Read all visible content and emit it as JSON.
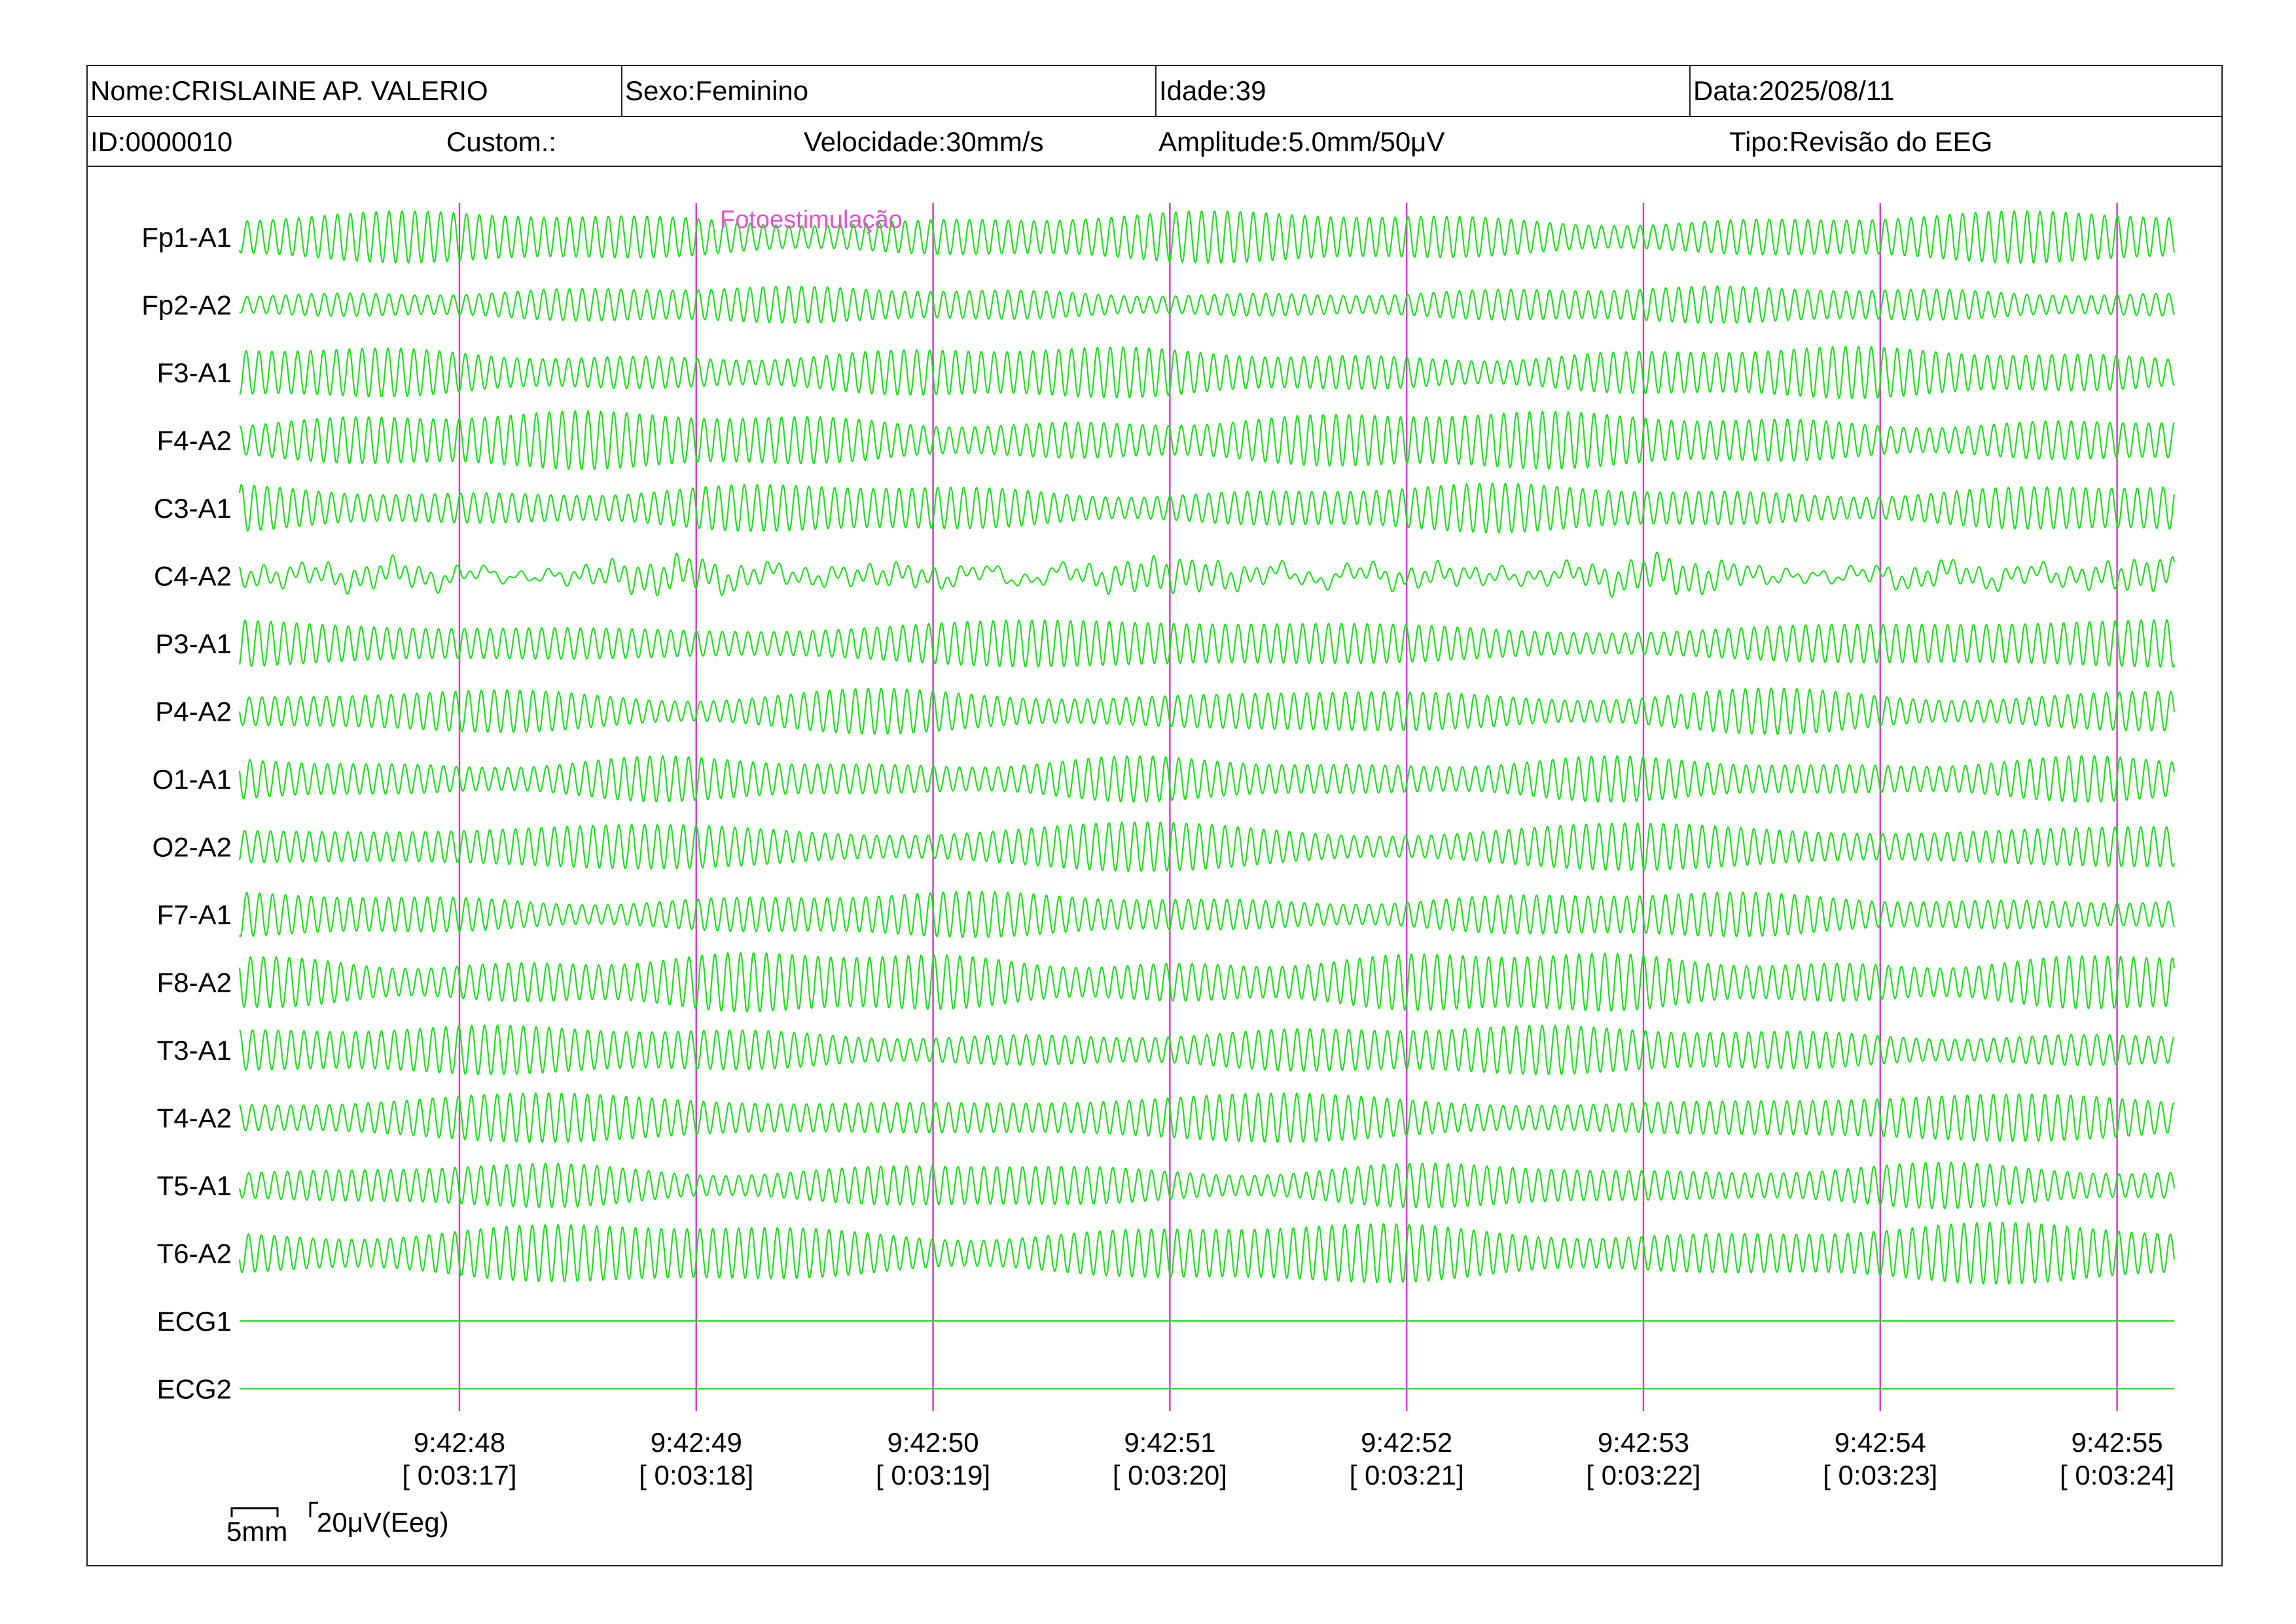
{
  "header": {
    "name": "Nome:CRISLAINE AP. VALERIO",
    "sex": "Sexo:Feminino",
    "age": "Idade:39",
    "date": "Data:2025/08/11",
    "id": "ID:0000010",
    "custom": "Custom.:",
    "speed": "Velocidade:30mm/s",
    "amplitude": "Amplitude:5.0mm/50μV",
    "type": "Tipo:Revisão do EEG"
  },
  "channels": [
    {
      "label": "Fp1-A1",
      "amplitude": 0.85,
      "cycles": 150,
      "pattern": "modulated"
    },
    {
      "label": "Fp2-A2",
      "amplitude": 0.6,
      "cycles": 150,
      "pattern": "modulated"
    },
    {
      "label": "F3-A1",
      "amplitude": 0.85,
      "cycles": 150,
      "pattern": "modulated"
    },
    {
      "label": "F4-A2",
      "amplitude": 0.95,
      "cycles": 150,
      "pattern": "modulated"
    },
    {
      "label": "C3-A1",
      "amplitude": 0.8,
      "cycles": 150,
      "pattern": "modulated"
    },
    {
      "label": "C4-A2",
      "amplitude": 0.6,
      "cycles": 150,
      "pattern": "irregular"
    },
    {
      "label": "P3-A1",
      "amplitude": 0.8,
      "cycles": 150,
      "pattern": "modulated"
    },
    {
      "label": "P4-A2",
      "amplitude": 0.75,
      "cycles": 150,
      "pattern": "modulated"
    },
    {
      "label": "O1-A1",
      "amplitude": 0.75,
      "cycles": 150,
      "pattern": "modulated"
    },
    {
      "label": "O2-A2",
      "amplitude": 0.8,
      "cycles": 150,
      "pattern": "modulated"
    },
    {
      "label": "F7-A1",
      "amplitude": 0.75,
      "cycles": 150,
      "pattern": "modulated"
    },
    {
      "label": "F8-A2",
      "amplitude": 1.0,
      "cycles": 150,
      "pattern": "modulated"
    },
    {
      "label": "T3-A1",
      "amplitude": 0.8,
      "cycles": 150,
      "pattern": "modulated"
    },
    {
      "label": "T4-A2",
      "amplitude": 0.8,
      "cycles": 150,
      "pattern": "modulated"
    },
    {
      "label": "T5-A1",
      "amplitude": 0.75,
      "cycles": 150,
      "pattern": "modulated"
    },
    {
      "label": "T6-A2",
      "amplitude": 1.0,
      "cycles": 150,
      "pattern": "modulated"
    },
    {
      "label": "ECG1",
      "amplitude": 0,
      "cycles": 0,
      "pattern": "flat"
    },
    {
      "label": "ECG2",
      "amplitude": 0,
      "cycles": 0,
      "pattern": "flat"
    }
  ],
  "time_marks": [
    {
      "clock": "9:42:48",
      "elapsed": "[ 0:03:17]"
    },
    {
      "clock": "9:42:49",
      "elapsed": "[ 0:03:18]"
    },
    {
      "clock": "9:42:50",
      "elapsed": "[ 0:03:19]"
    },
    {
      "clock": "9:42:51",
      "elapsed": "[ 0:03:20]"
    },
    {
      "clock": "9:42:52",
      "elapsed": "[ 0:03:21]"
    },
    {
      "clock": "9:42:53",
      "elapsed": "[ 0:03:22]"
    },
    {
      "clock": "9:42:54",
      "elapsed": "[ 0:03:23]"
    },
    {
      "clock": "9:42:55",
      "elapsed": "[ 0:03:24]"
    }
  ],
  "event": {
    "label": "Fotoestimulação"
  },
  "scale": {
    "time_label": "5mm",
    "amplitude_label": "20μV(Eeg)"
  },
  "colors": {
    "trace": "#22dd22",
    "time_marker": "#cc44cc",
    "event_text": "#dd55cc",
    "frame": "#222222"
  }
}
